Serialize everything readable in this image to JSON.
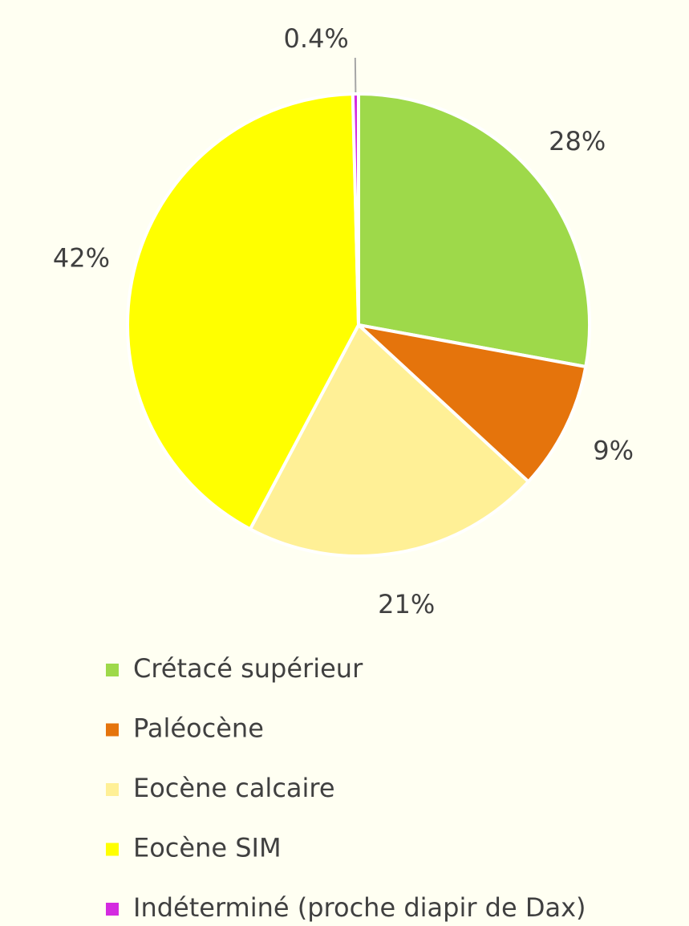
{
  "chart_data": {
    "type": "pie",
    "categories": [
      "Crétacé supérieur",
      "Paléocène",
      "Eocène calcaire",
      "Eocène SIM",
      "Indéterminé (proche diapir de Dax)"
    ],
    "values": [
      28,
      9,
      21,
      42,
      0.4
    ],
    "value_labels": [
      "28%",
      "9%",
      "21%",
      "42%",
      "0.4%"
    ],
    "colors": [
      "#9ed94a",
      "#e5740c",
      "#fff096",
      "#ffff00",
      "#d42ae0"
    ],
    "legend": "bottom"
  }
}
